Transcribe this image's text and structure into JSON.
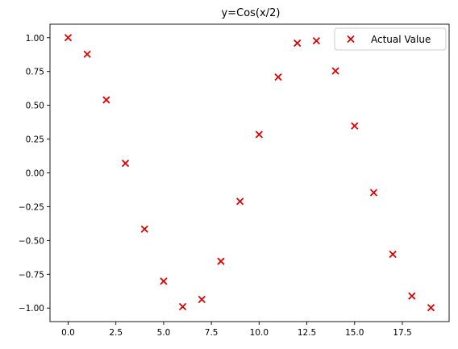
{
  "chart_data": {
    "type": "scatter",
    "title": "y=Cos(x/2)",
    "xlabel": "",
    "ylabel": "",
    "xlim": [
      -0.95,
      19.95
    ],
    "ylim": [
      -1.1,
      1.1
    ],
    "xticks": [
      0.0,
      2.5,
      5.0,
      7.5,
      10.0,
      12.5,
      15.0,
      17.5
    ],
    "xtick_labels": [
      "0.0",
      "2.5",
      "5.0",
      "7.5",
      "10.0",
      "12.5",
      "15.0",
      "17.5"
    ],
    "yticks": [
      1.0,
      0.75,
      0.5,
      0.25,
      0.0,
      -0.25,
      -0.5,
      -0.75,
      -1.0
    ],
    "ytick_labels": [
      "1.00",
      "0.75",
      "0.50",
      "0.25",
      "0.00",
      "−0.25",
      "−0.50",
      "−0.75",
      "−1.00"
    ],
    "grid": false,
    "legend_position": "top-right",
    "series": [
      {
        "name": "Actual Value",
        "marker": "x",
        "color": "#e00000",
        "x": [
          0,
          1,
          2,
          3,
          4,
          5,
          6,
          7,
          8,
          9,
          10,
          11,
          12,
          13,
          14,
          15,
          16,
          17,
          18,
          19
        ],
        "y": [
          1.0,
          0.878,
          0.54,
          0.071,
          -0.416,
          -0.801,
          -0.99,
          -0.936,
          -0.654,
          -0.211,
          0.284,
          0.709,
          0.96,
          0.977,
          0.754,
          0.347,
          -0.146,
          -0.602,
          -0.911,
          -0.997
        ]
      }
    ]
  }
}
